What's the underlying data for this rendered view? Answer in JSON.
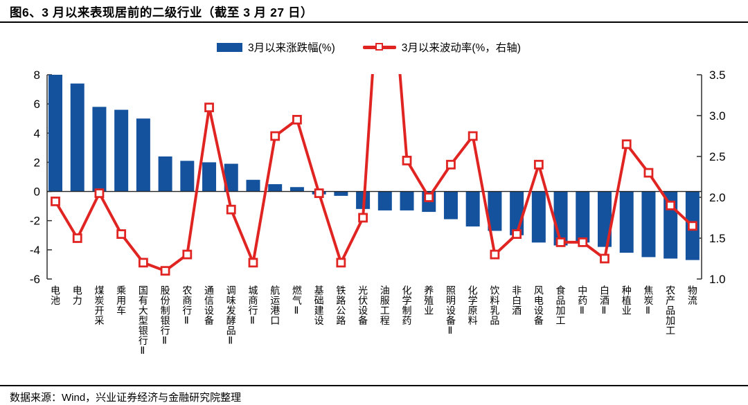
{
  "title": "图6、3 月以来表现居前的二级行业（截至 3 月 27 日）",
  "legend": {
    "bar": "3月以来涨跌幅(%)",
    "line": "3月以来波动率(%，右轴)"
  },
  "source": "数据来源：Wind，兴业证券经济与金融研究院整理",
  "colors": {
    "bar": "#15529E",
    "line": "#E02422",
    "axis": "#3A3A3A",
    "zero_line": "#222222"
  },
  "chart_data": {
    "type": "bar",
    "subtype": "combo bar+line, dual axis",
    "title": "图6、3 月以来表现居前的二级行业（截至 3 月 27 日）",
    "categories": [
      "电池",
      "电力",
      "煤炭开采",
      "乘用车",
      "国有大型银行Ⅱ",
      "股份制银行Ⅱ",
      "农商行Ⅱ",
      "通信设备",
      "调味发酵品Ⅱ",
      "城商行Ⅱ",
      "航运港口",
      "燃气Ⅱ",
      "基础建设",
      "铁路公路",
      "光伏设备",
      "油服工程",
      "化学制药",
      "养殖业",
      "照明设备Ⅱ",
      "化学原料",
      "饮料乳品",
      "非白酒",
      "风电设备",
      "食品加工",
      "中药Ⅱ",
      "白酒Ⅱ",
      "种植业",
      "焦炭Ⅱ",
      "农产品加工",
      "物流"
    ],
    "series": [
      {
        "name": "3月以来涨跌幅(%)",
        "type": "bar",
        "axis": "left",
        "values": [
          8.0,
          7.4,
          5.8,
          5.6,
          5.0,
          2.4,
          2.1,
          2.0,
          1.9,
          0.8,
          0.5,
          0.3,
          -0.2,
          -0.3,
          -1.2,
          -1.3,
          -1.3,
          -1.4,
          -1.9,
          -2.4,
          -2.7,
          -3.0,
          -3.5,
          -3.7,
          -3.5,
          -3.8,
          -4.2,
          -4.5,
          -4.6,
          -4.7
        ]
      },
      {
        "name": "3月以来波动率(%，右轴)",
        "type": "line",
        "axis": "right",
        "marker": "open-square",
        "values": [
          1.95,
          1.5,
          2.05,
          1.55,
          1.2,
          1.1,
          1.3,
          3.1,
          1.85,
          1.2,
          2.75,
          2.95,
          2.05,
          1.2,
          1.75,
          5.8,
          2.45,
          2.0,
          2.4,
          2.75,
          1.3,
          1.55,
          2.4,
          1.45,
          1.45,
          1.25,
          2.65,
          2.3,
          1.9,
          1.65
        ],
        "note": "油服工程 point is off-scale (above 3.5) and the line is clipped at the top of the plot"
      }
    ],
    "left_axis": {
      "range": [
        -6,
        8
      ],
      "ticks": [
        "8",
        "6",
        "4",
        "2",
        "0",
        "-2",
        "-4",
        "-6"
      ]
    },
    "right_axis": {
      "range": [
        1.0,
        3.5
      ],
      "ticks": [
        "3.5",
        "3.0",
        "2.5",
        "2.0",
        "1.5",
        "1.0"
      ]
    },
    "xlabel": "",
    "ylabel": "",
    "grid": false,
    "legend_position": "top-center",
    "category_label_orientation": "vertical"
  }
}
